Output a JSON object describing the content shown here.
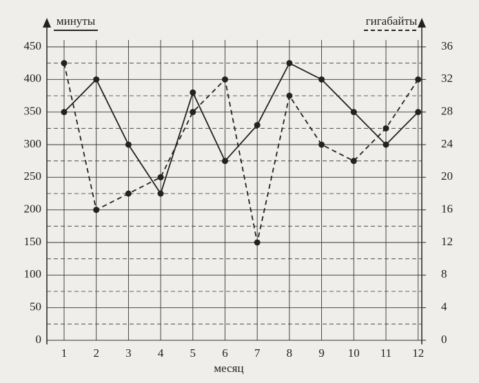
{
  "chart_data": {
    "type": "line",
    "y_label": "минуты",
    "y2_label": "гигабайты",
    "x_label": "месяц",
    "categories": [
      "1",
      "2",
      "3",
      "4",
      "5",
      "6",
      "7",
      "8",
      "9",
      "10",
      "11",
      "12"
    ],
    "series": [
      {
        "name": "минуты",
        "color": "#222222",
        "dash": false,
        "values": [
          350,
          400,
          300,
          225,
          380,
          275,
          330,
          425,
          400,
          350,
          300,
          350
        ]
      },
      {
        "name": "гигабайты",
        "color": "#222222",
        "dash": true,
        "axis": "y2",
        "values": [
          34,
          16,
          18,
          20,
          28,
          32,
          12,
          30,
          24,
          22,
          26,
          32
        ]
      }
    ],
    "ylim": [
      0,
      450
    ],
    "yticks": [
      0,
      50,
      100,
      150,
      200,
      250,
      300,
      350,
      400,
      450
    ],
    "y2lim": [
      0,
      36
    ],
    "y2ticks": [
      0,
      4,
      8,
      12,
      16,
      20,
      24,
      28,
      32,
      36
    ],
    "y2_minor_grid": [
      2,
      6,
      10,
      14,
      18,
      22,
      26,
      30,
      34
    ],
    "grid": true
  }
}
